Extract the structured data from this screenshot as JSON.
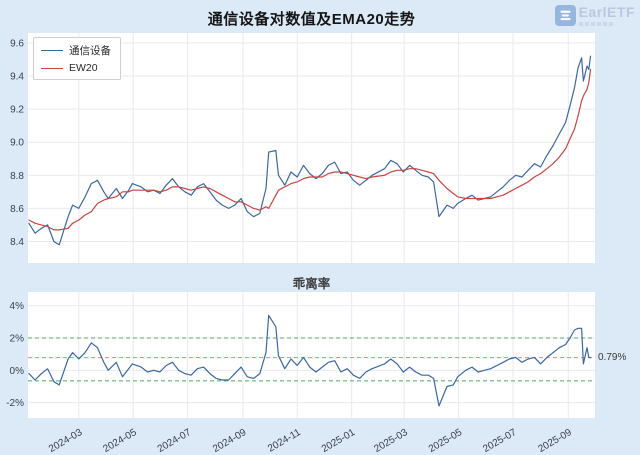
{
  "page": {
    "title": "通信设备对数值及EMA20走势"
  },
  "logo": {
    "text": "EarlETF"
  },
  "colors": {
    "background": "#dce9f6",
    "plot_bg": "#ffffff",
    "grid": "#e9e9f0",
    "axis_text": "#3a4150",
    "line_blue": "#3a68a3",
    "line_red": "#c94440",
    "dashed_green": "#55a868",
    "dashed_red": "#e8837a"
  },
  "dates": [
    "2024-01-05",
    "2024-01-12",
    "2024-01-19",
    "2024-01-26",
    "2024-02-02",
    "2024-02-08",
    "2024-02-18",
    "2024-02-23",
    "2024-03-01",
    "2024-03-08",
    "2024-03-15",
    "2024-03-22",
    "2024-03-29",
    "2024-04-03",
    "2024-04-12",
    "2024-04-19",
    "2024-04-26",
    "2024-04-30",
    "2024-05-10",
    "2024-05-17",
    "2024-05-24",
    "2024-05-31",
    "2024-06-07",
    "2024-06-14",
    "2024-06-21",
    "2024-06-28",
    "2024-07-05",
    "2024-07-12",
    "2024-07-19",
    "2024-07-26",
    "2024-08-02",
    "2024-08-09",
    "2024-08-16",
    "2024-08-23",
    "2024-08-30",
    "2024-09-06",
    "2024-09-13",
    "2024-09-20",
    "2024-09-27",
    "2024-09-30",
    "2024-10-08",
    "2024-10-11",
    "2024-10-18",
    "2024-10-25",
    "2024-11-01",
    "2024-11-08",
    "2024-11-15",
    "2024-11-22",
    "2024-11-29",
    "2024-12-06",
    "2024-12-13",
    "2024-12-20",
    "2024-12-27",
    "2025-01-03",
    "2025-01-10",
    "2025-01-17",
    "2025-01-24",
    "2025-02-07",
    "2025-02-14",
    "2025-02-21",
    "2025-02-28",
    "2025-03-07",
    "2025-03-14",
    "2025-03-21",
    "2025-03-28",
    "2025-04-03",
    "2025-04-09",
    "2025-04-18",
    "2025-04-25",
    "2025-04-30",
    "2025-05-09",
    "2025-05-16",
    "2025-05-23",
    "2025-05-30",
    "2025-06-06",
    "2025-06-13",
    "2025-06-20",
    "2025-06-27",
    "2025-07-04",
    "2025-07-11",
    "2025-07-18",
    "2025-07-25",
    "2025-08-01",
    "2025-08-08",
    "2025-08-15",
    "2025-08-22",
    "2025-08-29",
    "2025-09-03",
    "2025-09-08",
    "2025-09-12",
    "2025-09-16",
    "2025-09-18",
    "2025-09-22",
    "2025-09-24",
    "2025-09-26"
  ],
  "chart_data": [
    {
      "type": "line",
      "title": "通信设备对数值及EMA20走势",
      "x_domain": [
        "2024-01-04",
        "2025-10-01"
      ],
      "ylim": [
        8.27,
        9.66
      ],
      "yticks": [
        8.4,
        8.6,
        8.8,
        9.0,
        9.2,
        9.4,
        9.6
      ],
      "ytick_decimals": 1,
      "xticks": [
        "2024-03",
        "2024-05",
        "2024-07",
        "2024-09",
        "2024-11",
        "2025-01",
        "2025-03",
        "2025-05",
        "2025-07",
        "2025-09"
      ],
      "grid": true,
      "legend_position": "upper-left",
      "series": [
        {
          "name": "通信设备",
          "color": "#3a68a3",
          "values": [
            8.51,
            8.45,
            8.48,
            8.5,
            8.4,
            8.38,
            8.55,
            8.62,
            8.6,
            8.67,
            8.75,
            8.77,
            8.7,
            8.66,
            8.72,
            8.66,
            8.71,
            8.75,
            8.73,
            8.7,
            8.71,
            8.69,
            8.74,
            8.78,
            8.73,
            8.7,
            8.68,
            8.73,
            8.75,
            8.7,
            8.65,
            8.62,
            8.6,
            8.62,
            8.66,
            8.58,
            8.55,
            8.57,
            8.72,
            8.94,
            8.95,
            8.8,
            8.74,
            8.82,
            8.79,
            8.86,
            8.81,
            8.78,
            8.81,
            8.86,
            8.88,
            8.81,
            8.82,
            8.77,
            8.74,
            8.77,
            8.8,
            8.84,
            8.89,
            8.87,
            8.82,
            8.86,
            8.83,
            8.8,
            8.79,
            8.76,
            8.55,
            8.62,
            8.6,
            8.63,
            8.66,
            8.68,
            8.65,
            8.66,
            8.67,
            8.7,
            8.73,
            8.77,
            8.8,
            8.79,
            8.83,
            8.87,
            8.85,
            8.92,
            8.98,
            9.05,
            9.12,
            9.22,
            9.33,
            9.45,
            9.51,
            9.37,
            9.46,
            9.44,
            9.52
          ]
        },
        {
          "name": "EW20",
          "color": "#c94440",
          "values": [
            8.53,
            8.51,
            8.5,
            8.49,
            8.47,
            8.47,
            8.48,
            8.51,
            8.53,
            8.56,
            8.58,
            8.63,
            8.65,
            8.66,
            8.67,
            8.7,
            8.7,
            8.71,
            8.71,
            8.71,
            8.71,
            8.7,
            8.71,
            8.73,
            8.73,
            8.72,
            8.71,
            8.72,
            8.73,
            8.72,
            8.7,
            8.68,
            8.66,
            8.64,
            8.64,
            8.62,
            8.6,
            8.59,
            8.61,
            8.6,
            8.68,
            8.71,
            8.73,
            8.75,
            8.76,
            8.78,
            8.79,
            8.79,
            8.79,
            8.81,
            8.82,
            8.82,
            8.81,
            8.8,
            8.79,
            8.78,
            8.79,
            8.8,
            8.82,
            8.83,
            8.83,
            8.84,
            8.84,
            8.83,
            8.82,
            8.81,
            8.77,
            8.72,
            8.69,
            8.67,
            8.66,
            8.66,
            8.66,
            8.66,
            8.66,
            8.67,
            8.68,
            8.7,
            8.72,
            8.74,
            8.76,
            8.79,
            8.81,
            8.84,
            8.87,
            8.91,
            8.96,
            9.02,
            9.08,
            9.16,
            9.25,
            9.28,
            9.32,
            9.36,
            9.44
          ]
        }
      ]
    },
    {
      "type": "line",
      "title": "乖离率",
      "x_domain": [
        "2024-01-04",
        "2025-10-01"
      ],
      "ylim": [
        -2.95,
        4.85
      ],
      "yticks": [
        -2,
        0,
        2,
        4
      ],
      "ytick_decimals": 0,
      "ytick_suffix": "%",
      "xticks": [
        "2024-03",
        "2024-05",
        "2024-07",
        "2024-09",
        "2024-11",
        "2025-01",
        "2025-03",
        "2025-05",
        "2025-07",
        "2025-09"
      ],
      "grid": true,
      "hlines": [
        {
          "y": 2.0,
          "color": "#55a868",
          "style": "dashed"
        },
        {
          "y": 0.79,
          "color": "#e8837a",
          "style": "dashed"
        },
        {
          "y": -0.65,
          "color": "#55a868",
          "style": "dashed"
        }
      ],
      "annotation": {
        "text": "0.79%",
        "y": 0.79
      },
      "series": [
        {
          "name": "乖离率",
          "color": "#3a68a3",
          "values": [
            -0.2,
            -0.6,
            -0.2,
            0.1,
            -0.7,
            -0.9,
            0.7,
            1.1,
            0.7,
            1.1,
            1.7,
            1.4,
            0.5,
            0.0,
            0.5,
            -0.4,
            0.1,
            0.4,
            0.2,
            -0.1,
            0.0,
            -0.1,
            0.3,
            0.5,
            0.0,
            -0.2,
            -0.3,
            0.1,
            0.2,
            -0.2,
            -0.5,
            -0.6,
            -0.6,
            -0.2,
            0.2,
            -0.4,
            -0.5,
            -0.2,
            1.1,
            3.4,
            2.7,
            0.9,
            0.1,
            0.7,
            0.3,
            0.8,
            0.2,
            -0.1,
            0.2,
            0.5,
            0.6,
            -0.1,
            0.1,
            -0.3,
            -0.5,
            -0.1,
            0.1,
            0.4,
            0.7,
            0.4,
            -0.1,
            0.2,
            -0.1,
            -0.3,
            -0.3,
            -0.5,
            -2.2,
            -1.0,
            -0.9,
            -0.4,
            0.0,
            0.2,
            -0.1,
            0.0,
            0.1,
            0.3,
            0.5,
            0.7,
            0.8,
            0.5,
            0.7,
            0.8,
            0.4,
            0.8,
            1.1,
            1.4,
            1.6,
            2.0,
            2.5,
            2.6,
            2.6,
            0.4,
            1.4,
            0.8,
            0.79
          ]
        }
      ]
    }
  ]
}
